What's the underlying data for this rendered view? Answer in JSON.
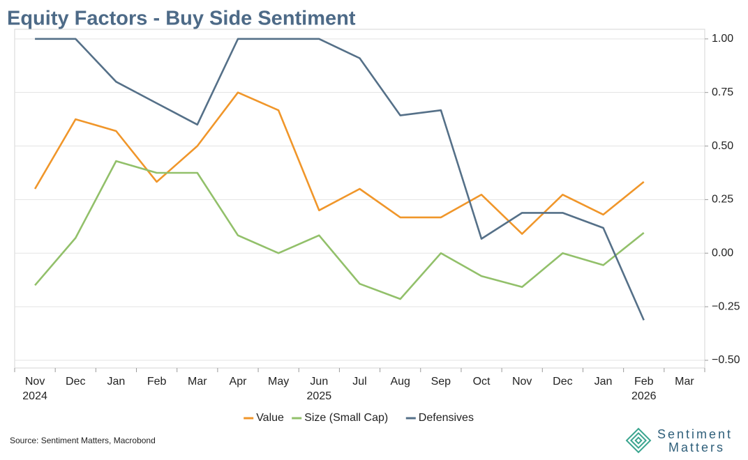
{
  "chart_data": {
    "type": "line",
    "title": "Equity Factors - Buy Side Sentiment",
    "categories": [
      "Nov",
      "Dec",
      "Jan",
      "Feb",
      "Mar",
      "Apr",
      "May",
      "Jun",
      "Jul",
      "Aug",
      "Sep",
      "Oct",
      "Nov",
      "Dec",
      "Jan",
      "Feb",
      "Mar"
    ],
    "year_labels": [
      "2024",
      null,
      null,
      null,
      null,
      null,
      null,
      "2025",
      null,
      null,
      null,
      null,
      null,
      null,
      null,
      "2026",
      null
    ],
    "series": [
      {
        "name": "Value",
        "color": "#f0962a",
        "values": [
          0.3,
          0.625,
          0.57,
          0.333,
          0.5,
          0.75,
          0.667,
          0.2,
          0.3,
          0.167,
          0.167,
          0.273,
          0.09,
          0.273,
          0.18,
          0.333,
          null
        ]
      },
      {
        "name": "Size (Small Cap)",
        "color": "#92c06a",
        "values": [
          -0.15,
          0.071,
          0.43,
          0.375,
          0.375,
          0.083,
          0.0,
          0.083,
          -0.143,
          -0.214,
          0.0,
          -0.107,
          -0.158,
          0.0,
          -0.056,
          0.095,
          null
        ]
      },
      {
        "name": "Defensives",
        "color": "#557088",
        "values": [
          1.0,
          1.0,
          0.8,
          0.7,
          0.6,
          1.0,
          1.0,
          1.0,
          0.91,
          0.643,
          0.667,
          0.067,
          0.188,
          0.188,
          0.118,
          -0.313,
          null
        ]
      }
    ],
    "ylim": [
      -0.536,
      1.045
    ],
    "yticks": [
      {
        "value": 1,
        "label": "1.00"
      },
      {
        "value": 0.75,
        "label": "0.75"
      },
      {
        "value": 0.5,
        "label": "0.50"
      },
      {
        "value": 0.25,
        "label": "0.25"
      },
      {
        "value": 0,
        "label": "0.00"
      },
      {
        "value": -0.25,
        "label": "−0.25"
      },
      {
        "value": -0.5,
        "label": "−0.50"
      }
    ],
    "grid": true,
    "legend": "bottom",
    "source": "Source: Sentiment Matters, Macrobond",
    "brand": [
      "Sentiment",
      "Matters"
    ]
  }
}
